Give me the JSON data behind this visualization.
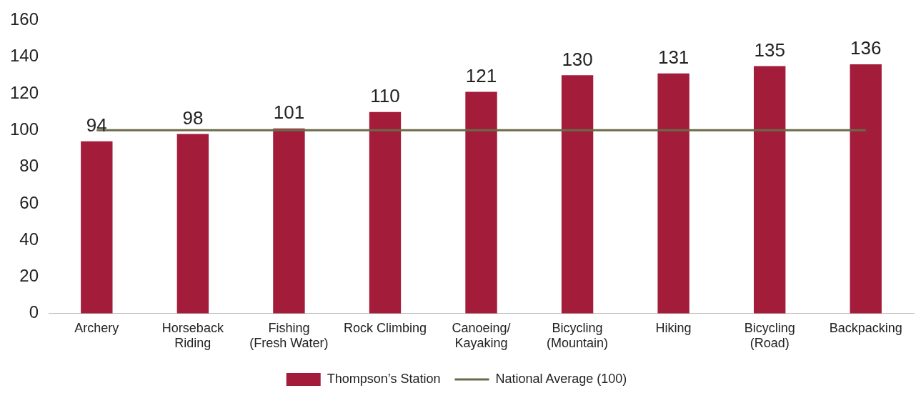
{
  "chart_data": {
    "type": "bar",
    "categories": [
      "Archery",
      "Horseback\nRiding",
      "Fishing\n(Fresh Water)",
      "Rock Climbing",
      "Canoeing/\nKayaking",
      "Bicycling\n(Mountain)",
      "Hiking",
      "Bicycling\n(Road)",
      "Backpacking"
    ],
    "series": [
      {
        "name": "Thompson’s Station",
        "color": "#a31c3a",
        "values": [
          94,
          98,
          101,
          110,
          121,
          130,
          131,
          135,
          136
        ],
        "value_labels": [
          "94",
          "98",
          "101",
          "110",
          "121",
          "130",
          "131",
          "135",
          "136"
        ]
      },
      {
        "name": "National Average (100)",
        "type": "line",
        "color": "#6b6a4a",
        "values": [
          100,
          100,
          100,
          100,
          100,
          100,
          100,
          100,
          100
        ]
      }
    ],
    "ylim": [
      0,
      160
    ],
    "yticks": [
      0,
      20,
      40,
      60,
      80,
      100,
      120,
      140,
      160
    ],
    "grid": false,
    "legend": "bottom",
    "marker": "none"
  }
}
